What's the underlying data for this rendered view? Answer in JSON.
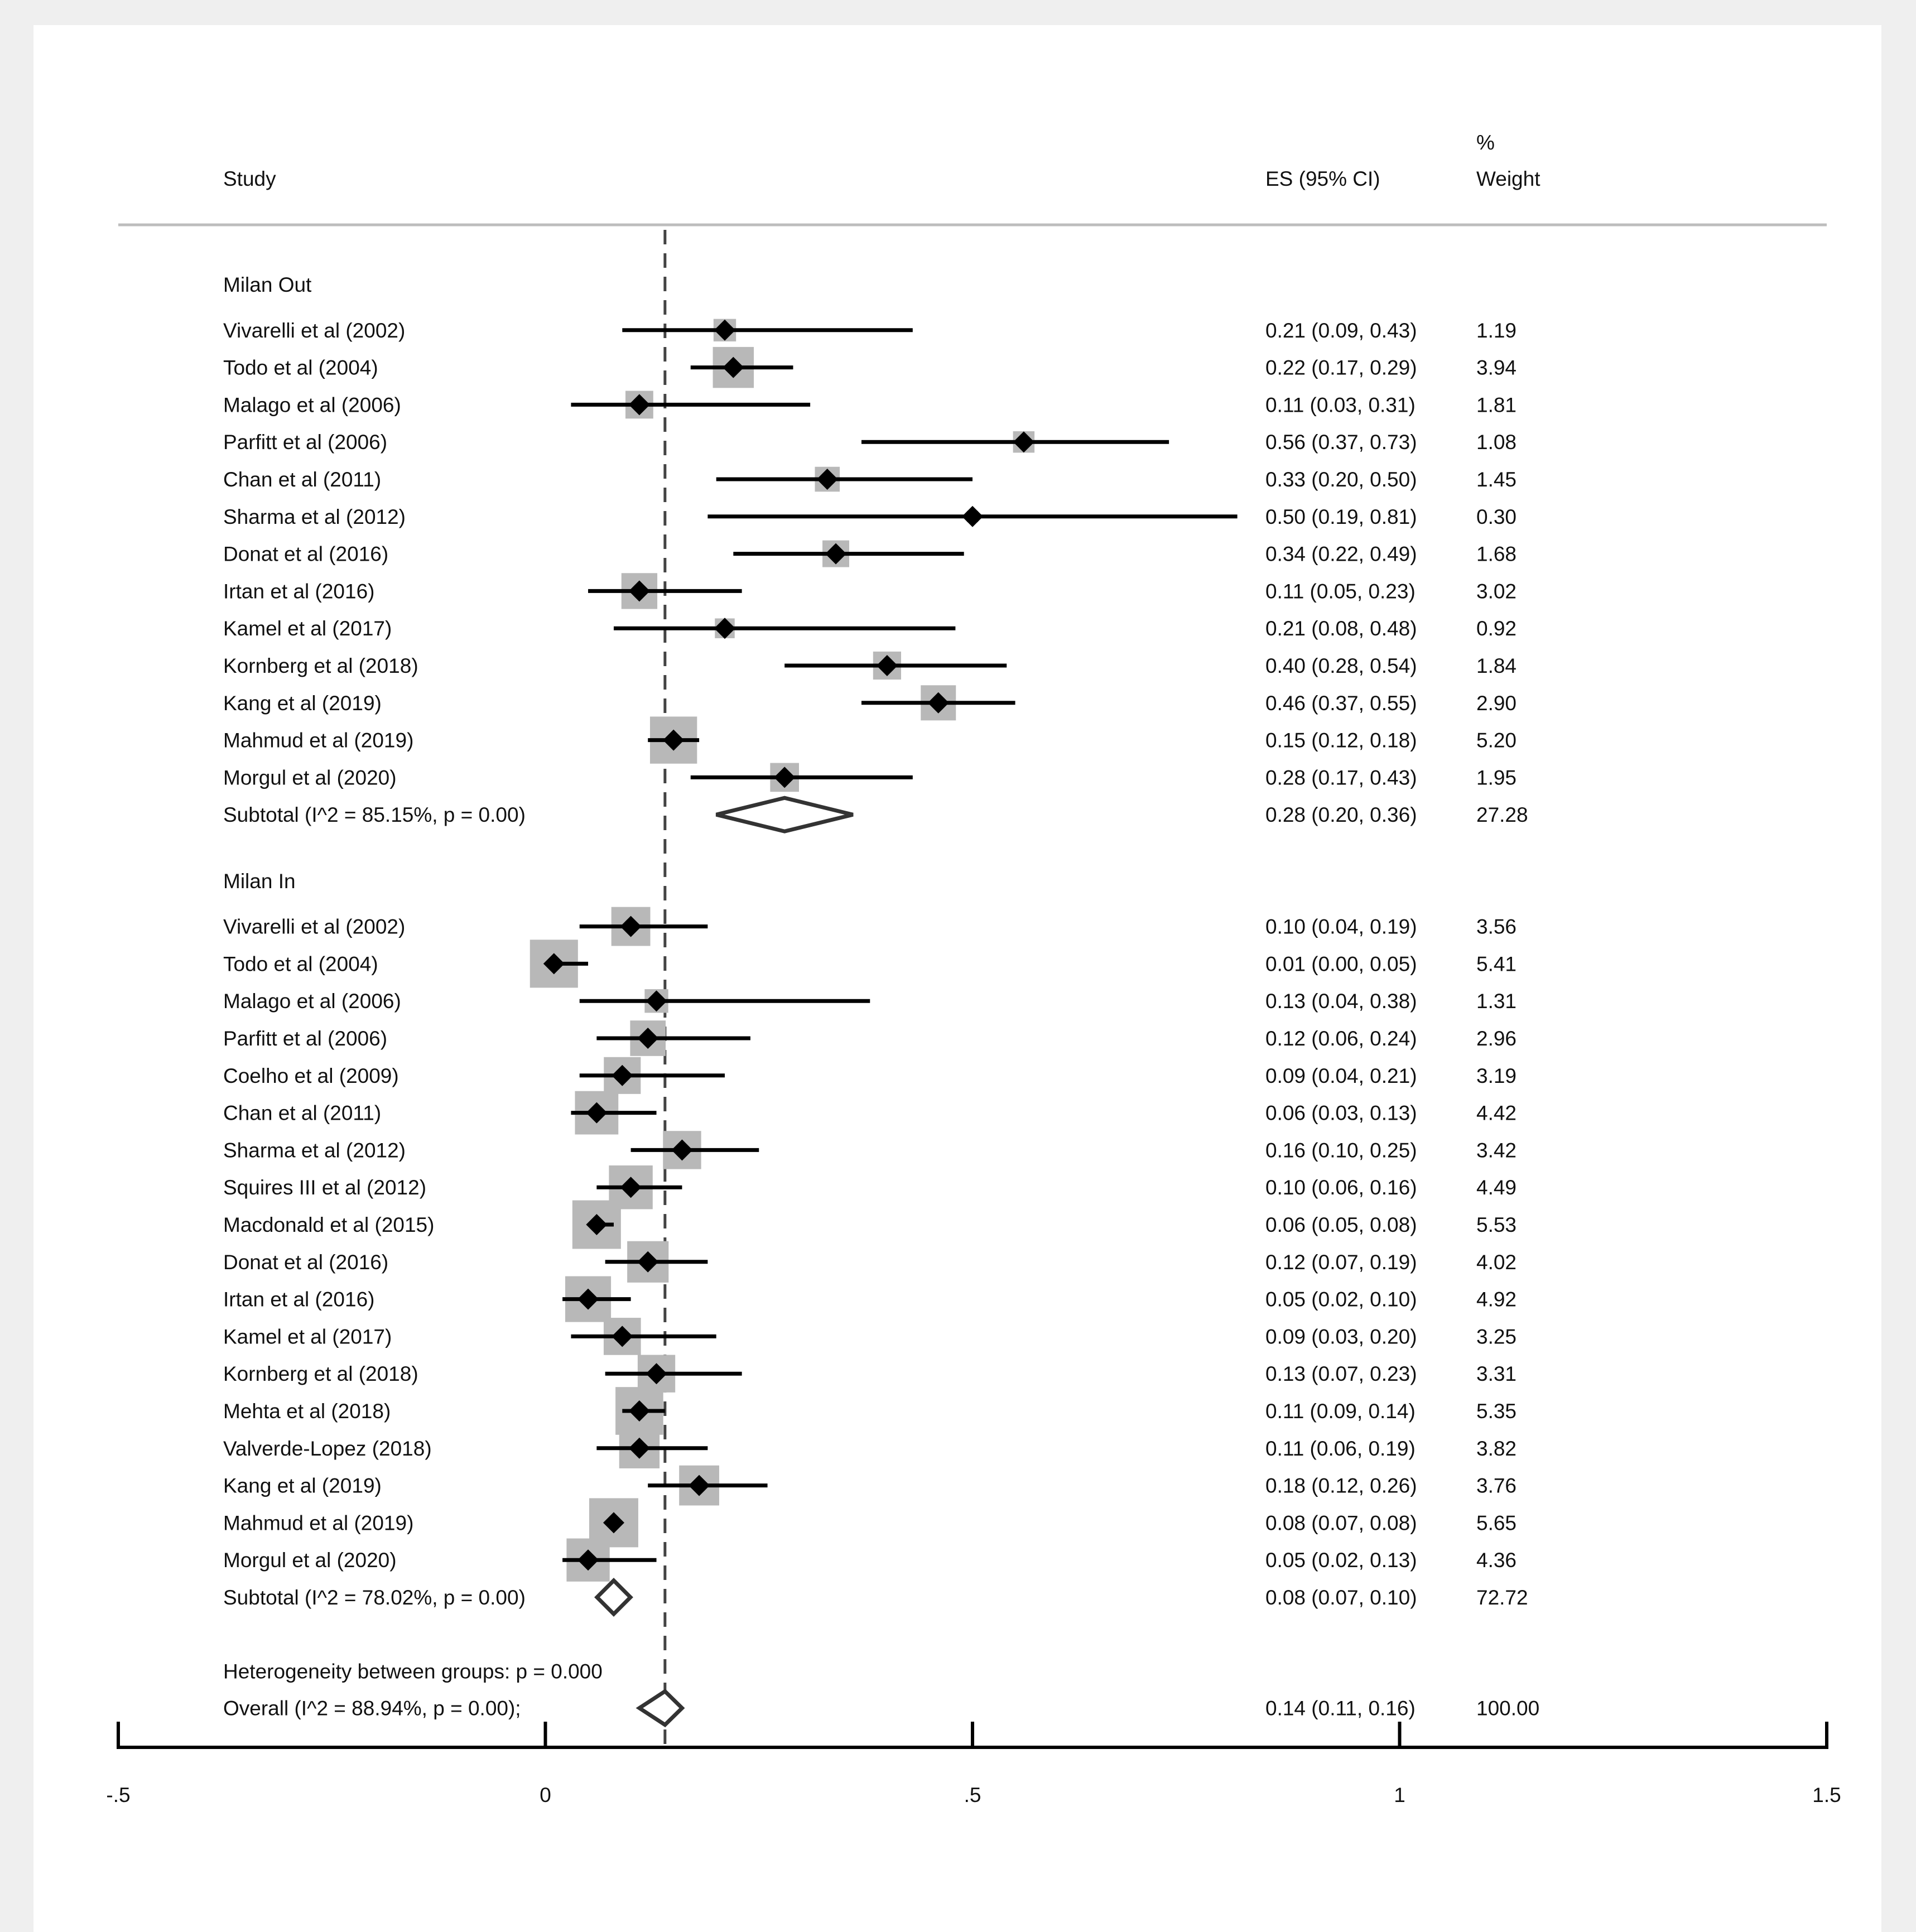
{
  "chart_data": {
    "type": "forest",
    "headers": {
      "study": "Study",
      "es": "ES (95% CI)",
      "weight_top": "%",
      "weight": "Weight"
    },
    "x_axis": {
      "range": [
        -0.5,
        1.5
      ],
      "ticks": [
        -0.5,
        0,
        0.5,
        1,
        1.5
      ],
      "tick_labels": [
        "-.5",
        "0",
        ".5",
        "1",
        "1.5"
      ]
    },
    "reference_line": 0.14,
    "groups": [
      {
        "name": "Milan Out",
        "studies": [
          {
            "label": "Vivarelli et al (2002)",
            "es": 0.21,
            "lo": 0.09,
            "hi": 0.43,
            "es_text": "0.21 (0.09, 0.43)",
            "weight": 1.19,
            "weight_text": "1.19"
          },
          {
            "label": "Todo et al (2004)",
            "es": 0.22,
            "lo": 0.17,
            "hi": 0.29,
            "es_text": "0.22 (0.17, 0.29)",
            "weight": 3.94,
            "weight_text": "3.94"
          },
          {
            "label": "Malago et al (2006)",
            "es": 0.11,
            "lo": 0.03,
            "hi": 0.31,
            "es_text": "0.11 (0.03, 0.31)",
            "weight": 1.81,
            "weight_text": "1.81"
          },
          {
            "label": "Parfitt et al (2006)",
            "es": 0.56,
            "lo": 0.37,
            "hi": 0.73,
            "es_text": "0.56 (0.37, 0.73)",
            "weight": 1.08,
            "weight_text": "1.08"
          },
          {
            "label": "Chan et al (2011)",
            "es": 0.33,
            "lo": 0.2,
            "hi": 0.5,
            "es_text": "0.33 (0.20, 0.50)",
            "weight": 1.45,
            "weight_text": "1.45"
          },
          {
            "label": "Sharma et al (2012)",
            "es": 0.5,
            "lo": 0.19,
            "hi": 0.81,
            "es_text": "0.50 (0.19, 0.81)",
            "weight": 0.3,
            "weight_text": "0.30"
          },
          {
            "label": "Donat et al  (2016)",
            "es": 0.34,
            "lo": 0.22,
            "hi": 0.49,
            "es_text": "0.34 (0.22, 0.49)",
            "weight": 1.68,
            "weight_text": "1.68"
          },
          {
            "label": "Irtan et al (2016)",
            "es": 0.11,
            "lo": 0.05,
            "hi": 0.23,
            "es_text": "0.11 (0.05, 0.23)",
            "weight": 3.02,
            "weight_text": "3.02"
          },
          {
            "label": "Kamel et al (2017)",
            "es": 0.21,
            "lo": 0.08,
            "hi": 0.48,
            "es_text": "0.21 (0.08, 0.48)",
            "weight": 0.92,
            "weight_text": "0.92"
          },
          {
            "label": "Kornberg et al (2018)",
            "es": 0.4,
            "lo": 0.28,
            "hi": 0.54,
            "es_text": "0.40 (0.28, 0.54)",
            "weight": 1.84,
            "weight_text": "1.84"
          },
          {
            "label": "Kang et al (2019)",
            "es": 0.46,
            "lo": 0.37,
            "hi": 0.55,
            "es_text": "0.46 (0.37, 0.55)",
            "weight": 2.9,
            "weight_text": "2.90"
          },
          {
            "label": "Mahmud et al (2019)",
            "es": 0.15,
            "lo": 0.12,
            "hi": 0.18,
            "es_text": "0.15 (0.12, 0.18)",
            "weight": 5.2,
            "weight_text": "5.20"
          },
          {
            "label": "Morgul et al (2020)",
            "es": 0.28,
            "lo": 0.17,
            "hi": 0.43,
            "es_text": "0.28 (0.17, 0.43)",
            "weight": 1.95,
            "weight_text": "1.95"
          }
        ],
        "subtotal": {
          "label": "Subtotal  (I^2 = 85.15%, p = 0.00)",
          "es": 0.28,
          "lo": 0.2,
          "hi": 0.36,
          "es_text": "0.28 (0.20, 0.36)",
          "weight_text": "27.28"
        }
      },
      {
        "name": "Milan In",
        "studies": [
          {
            "label": "Vivarelli et al (2002)",
            "es": 0.1,
            "lo": 0.04,
            "hi": 0.19,
            "es_text": "0.10 (0.04, 0.19)",
            "weight": 3.56,
            "weight_text": "3.56"
          },
          {
            "label": "Todo et al  (2004)",
            "es": 0.01,
            "lo": 0.0,
            "hi": 0.05,
            "es_text": "0.01 (0.00, 0.05)",
            "weight": 5.41,
            "weight_text": "5.41"
          },
          {
            "label": "Malago et al (2006)",
            "es": 0.13,
            "lo": 0.04,
            "hi": 0.38,
            "es_text": "0.13 (0.04, 0.38)",
            "weight": 1.31,
            "weight_text": "1.31"
          },
          {
            "label": "Parfitt et al (2006)",
            "es": 0.12,
            "lo": 0.06,
            "hi": 0.24,
            "es_text": "0.12 (0.06, 0.24)",
            "weight": 2.96,
            "weight_text": "2.96"
          },
          {
            "label": "Coelho et al (2009)",
            "es": 0.09,
            "lo": 0.04,
            "hi": 0.21,
            "es_text": "0.09 (0.04, 0.21)",
            "weight": 3.19,
            "weight_text": "3.19"
          },
          {
            "label": "Chan et al (2011)",
            "es": 0.06,
            "lo": 0.03,
            "hi": 0.13,
            "es_text": "0.06 (0.03, 0.13)",
            "weight": 4.42,
            "weight_text": "4.42"
          },
          {
            "label": "Sharma et al (2012)",
            "es": 0.16,
            "lo": 0.1,
            "hi": 0.25,
            "es_text": "0.16 (0.10, 0.25)",
            "weight": 3.42,
            "weight_text": "3.42"
          },
          {
            "label": "Squires III et al (2012)",
            "es": 0.1,
            "lo": 0.06,
            "hi": 0.16,
            "es_text": "0.10 (0.06, 0.16)",
            "weight": 4.49,
            "weight_text": "4.49"
          },
          {
            "label": "Macdonald et al (2015)",
            "es": 0.06,
            "lo": 0.05,
            "hi": 0.08,
            "es_text": "0.06 (0.05, 0.08)",
            "weight": 5.53,
            "weight_text": "5.53"
          },
          {
            "label": "Donat et al  (2016)",
            "es": 0.12,
            "lo": 0.07,
            "hi": 0.19,
            "es_text": "0.12 (0.07, 0.19)",
            "weight": 4.02,
            "weight_text": "4.02"
          },
          {
            "label": "Irtan et al (2016)",
            "es": 0.05,
            "lo": 0.02,
            "hi": 0.1,
            "es_text": "0.05 (0.02, 0.10)",
            "weight": 4.92,
            "weight_text": "4.92"
          },
          {
            "label": "Kamel et al (2017)",
            "es": 0.09,
            "lo": 0.03,
            "hi": 0.2,
            "es_text": "0.09 (0.03, 0.20)",
            "weight": 3.25,
            "weight_text": "3.25"
          },
          {
            "label": "Kornberg et al (2018)",
            "es": 0.13,
            "lo": 0.07,
            "hi": 0.23,
            "es_text": "0.13 (0.07, 0.23)",
            "weight": 3.31,
            "weight_text": "3.31"
          },
          {
            "label": "Mehta et al (2018)",
            "es": 0.11,
            "lo": 0.09,
            "hi": 0.14,
            "es_text": "0.11 (0.09, 0.14)",
            "weight": 5.35,
            "weight_text": "5.35"
          },
          {
            "label": "Valverde-Lopez (2018)",
            "es": 0.11,
            "lo": 0.06,
            "hi": 0.19,
            "es_text": "0.11 (0.06, 0.19)",
            "weight": 3.82,
            "weight_text": "3.82"
          },
          {
            "label": "Kang et al  (2019)",
            "es": 0.18,
            "lo": 0.12,
            "hi": 0.26,
            "es_text": "0.18 (0.12, 0.26)",
            "weight": 3.76,
            "weight_text": "3.76"
          },
          {
            "label": "Mahmud et al (2019)",
            "es": 0.08,
            "lo": 0.07,
            "hi": 0.08,
            "es_text": "0.08 (0.07, 0.08)",
            "weight": 5.65,
            "weight_text": "5.65"
          },
          {
            "label": "Morgul et al (2020)",
            "es": 0.05,
            "lo": 0.02,
            "hi": 0.13,
            "es_text": "0.05 (0.02, 0.13)",
            "weight": 4.36,
            "weight_text": "4.36"
          }
        ],
        "subtotal": {
          "label": "Subtotal  (I^2 = 78.02%, p = 0.00)",
          "es": 0.08,
          "lo": 0.07,
          "hi": 0.1,
          "es_text": "0.08 (0.07, 0.10)",
          "weight_text": "72.72"
        }
      }
    ],
    "heterogeneity_text": "Heterogeneity between groups: p = 0.000",
    "overall": {
      "label": "Overall  (I^2 = 88.94%, p = 0.00);",
      "es": 0.14,
      "lo": 0.11,
      "hi": 0.16,
      "es_text": "0.14 (0.11, 0.16)",
      "weight_text": "100.00"
    }
  },
  "colors": {
    "outer_bg": "#efefef",
    "panel_bg": "#ffffff",
    "weight_box": "#b8b8b8",
    "marker": "#000000",
    "ref_line": "#444444",
    "header_rule": "#bdbdbd"
  }
}
